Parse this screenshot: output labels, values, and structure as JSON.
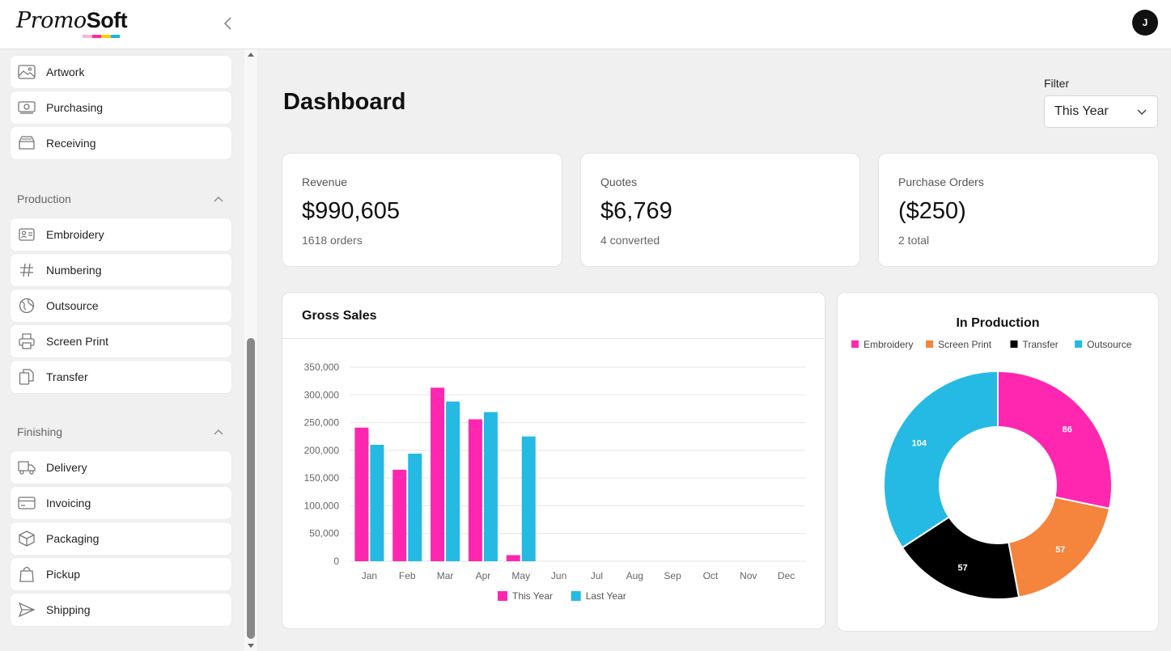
{
  "brand": {
    "name_italic": "Promo",
    "name_bold": "Soft",
    "stripe_colors": [
      "#f7b6d8",
      "#ff2aa6",
      "#ffcc00",
      "#19b5e6"
    ]
  },
  "user": {
    "initial": "J"
  },
  "sidebar": {
    "top_items": [
      {
        "label": "Artwork",
        "icon": "image-icon"
      },
      {
        "label": "Purchasing",
        "icon": "cash-icon"
      },
      {
        "label": "Receiving",
        "icon": "inbox-icon"
      }
    ],
    "sections": [
      {
        "title": "Production",
        "items": [
          {
            "label": "Embroidery",
            "icon": "id-card-icon"
          },
          {
            "label": "Numbering",
            "icon": "hash-icon"
          },
          {
            "label": "Outsource",
            "icon": "globe-icon"
          },
          {
            "label": "Screen Print",
            "icon": "printer-icon"
          },
          {
            "label": "Transfer",
            "icon": "copy-icon"
          }
        ]
      },
      {
        "title": "Finishing",
        "items": [
          {
            "label": "Delivery",
            "icon": "truck-icon"
          },
          {
            "label": "Invoicing",
            "icon": "credit-card-icon"
          },
          {
            "label": "Packaging",
            "icon": "box-icon"
          },
          {
            "label": "Pickup",
            "icon": "shopping-bag-icon"
          },
          {
            "label": "Shipping",
            "icon": "send-icon"
          }
        ]
      }
    ]
  },
  "main": {
    "title": "Dashboard",
    "filter": {
      "label": "Filter",
      "value": "This Year"
    },
    "stats": [
      {
        "label": "Revenue",
        "value": "$990,605",
        "sub": "1618 orders"
      },
      {
        "label": "Quotes",
        "value": "$6,769",
        "sub": "4 converted"
      },
      {
        "label": "Purchase Orders",
        "value": "($250)",
        "sub": "2 total"
      }
    ]
  },
  "chart_data": [
    {
      "type": "bar",
      "title": "Gross Sales",
      "categories": [
        "Jan",
        "Feb",
        "Mar",
        "Apr",
        "May",
        "Jun",
        "Jul",
        "Aug",
        "Sep",
        "Oct",
        "Nov",
        "Dec"
      ],
      "series": [
        {
          "name": "This Year",
          "color": "#ff26b0",
          "values": [
            241000,
            165000,
            313000,
            256000,
            11000,
            0,
            0,
            0,
            0,
            0,
            0,
            0
          ]
        },
        {
          "name": "Last Year",
          "color": "#24bae4",
          "values": [
            210000,
            194000,
            288000,
            269000,
            225000,
            0,
            0,
            0,
            0,
            0,
            0,
            0
          ]
        }
      ],
      "yticks": [
        "0",
        "50,000",
        "100,000",
        "150,000",
        "200,000",
        "250,000",
        "300,000",
        "350,000"
      ],
      "ylim": [
        0,
        350000
      ],
      "grid": true,
      "legend": "bottom-center"
    },
    {
      "type": "pie",
      "title": "In Production",
      "donut": true,
      "legend": "top-center",
      "slices": [
        {
          "name": "Embroidery",
          "value": 86,
          "color": "#ff26b0"
        },
        {
          "name": "Screen Print",
          "value": 57,
          "color": "#f5843c"
        },
        {
          "name": "Transfer",
          "value": 57,
          "color": "#000000"
        },
        {
          "name": "Outsource",
          "value": 104,
          "color": "#24bae4"
        }
      ]
    }
  ]
}
